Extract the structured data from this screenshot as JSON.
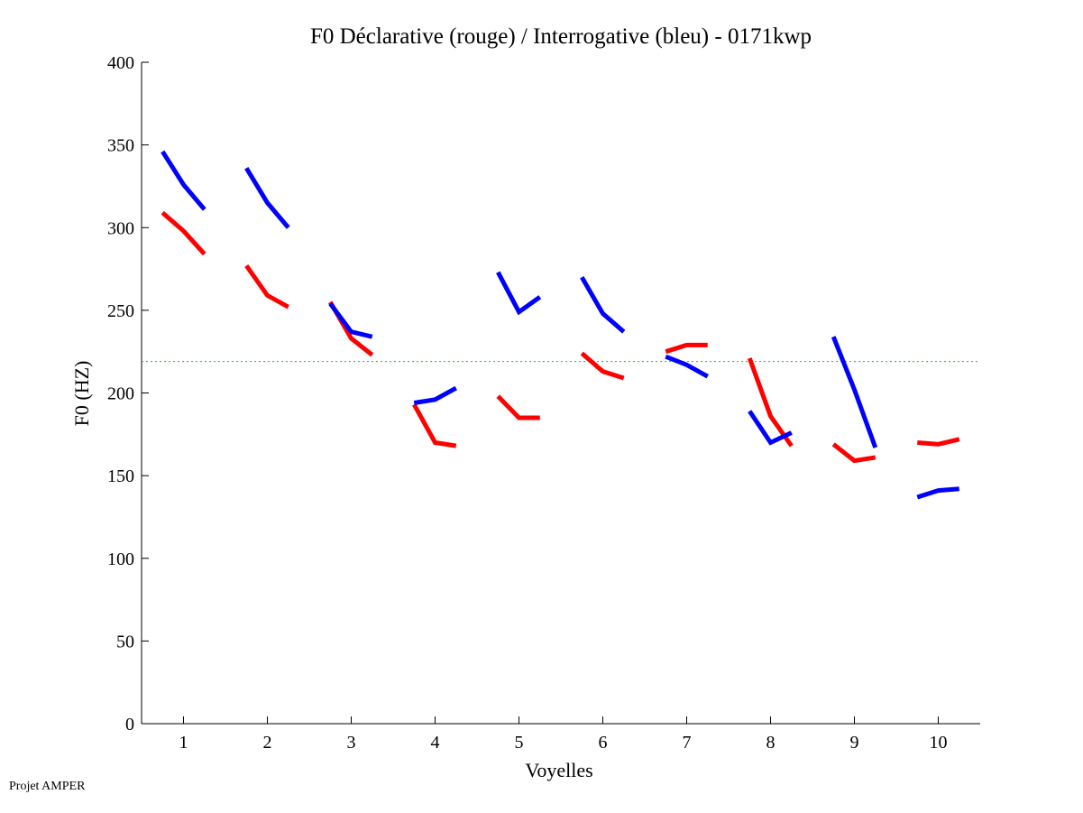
{
  "chart_data": {
    "type": "line",
    "title": "F0 Déclarative (rouge) / Interrogative (bleu) - 0171kwp",
    "xlabel": "Voyelles",
    "ylabel": "F0 (HZ)",
    "xlim": [
      0.5,
      10.5
    ],
    "ylim": [
      0,
      400
    ],
    "xticks": [
      1,
      2,
      3,
      4,
      5,
      6,
      7,
      8,
      9,
      10
    ],
    "yticks": [
      0,
      50,
      100,
      150,
      200,
      250,
      300,
      350,
      400
    ],
    "reference_line": {
      "y": 219,
      "color": "#00cc00",
      "style": "dotted"
    },
    "series": [
      {
        "name": "Déclarative (rouge)",
        "color": "#ff0000",
        "segments": [
          [
            309,
            298,
            284
          ],
          [
            277,
            259,
            252
          ],
          [
            255,
            233,
            223
          ],
          [
            193,
            170,
            168
          ],
          [
            198,
            185,
            185
          ],
          [
            224,
            213,
            209
          ],
          [
            225,
            229,
            229
          ],
          [
            221,
            186,
            168
          ],
          [
            169,
            159,
            161
          ],
          [
            170,
            169,
            172
          ]
        ]
      },
      {
        "name": "Interrogative (bleu)",
        "color": "#0000ff",
        "segments": [
          [
            346,
            326,
            311
          ],
          [
            336,
            315,
            300
          ],
          [
            254,
            237,
            234
          ],
          [
            194,
            196,
            203
          ],
          [
            273,
            249,
            258
          ],
          [
            270,
            248,
            237
          ],
          [
            222,
            217,
            210
          ],
          [
            189,
            170,
            176
          ],
          [
            234,
            202,
            167
          ],
          [
            137,
            141,
            142
          ]
        ]
      }
    ],
    "segment_offsets": [
      -0.25,
      0,
      0.25
    ]
  },
  "footer": "Projet AMPER"
}
